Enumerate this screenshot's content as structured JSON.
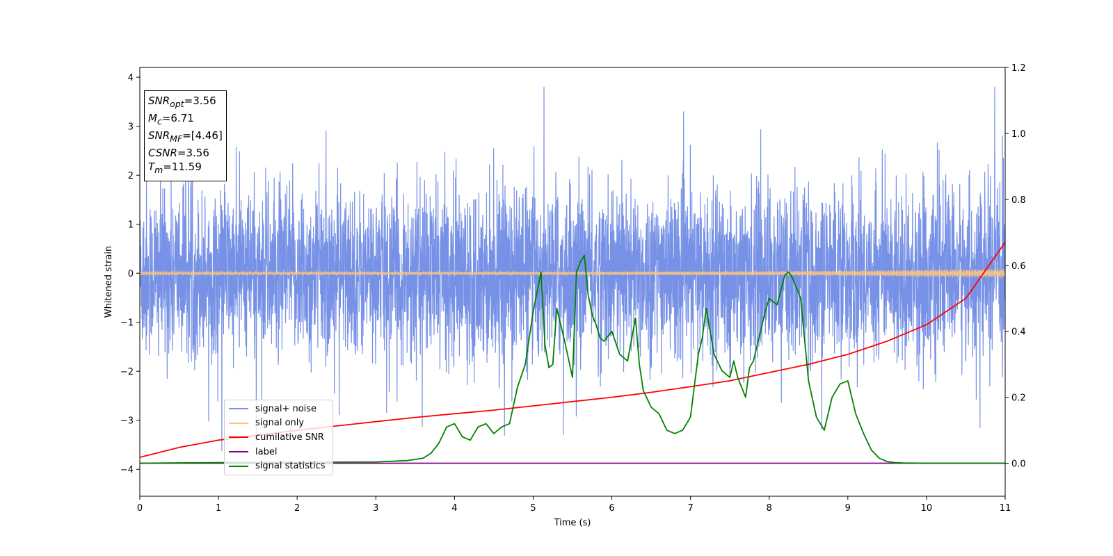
{
  "chart_data": {
    "type": "line",
    "xlabel": "Time (s)",
    "ylabel": "Whitened strain",
    "xlim": [
      0,
      11
    ],
    "ylim_left": [
      -4.55,
      4.2
    ],
    "ylim_right": [
      -0.1,
      1.2
    ],
    "x_ticks": [
      "0",
      "1",
      "2",
      "3",
      "4",
      "5",
      "6",
      "7",
      "8",
      "9",
      "10",
      "11"
    ],
    "y_ticks_left": [
      "−4",
      "−3",
      "−2",
      "−1",
      "0",
      "1",
      "2",
      "3",
      "4"
    ],
    "y_ticks_right": [
      "0.0",
      "0.2",
      "0.4",
      "0.6",
      "0.8",
      "1.0",
      "1.2"
    ],
    "grid": false,
    "legend_position": "lower-left",
    "series": [
      {
        "name": "signal+ noise",
        "axis": "left",
        "color": "#7791e6",
        "envelope": {
          "x": [
            0,
            11
          ],
          "typical_range": [
            -1.5,
            1.5
          ],
          "extreme_range": [
            -4.2,
            3.8
          ]
        }
      },
      {
        "name": "signal only",
        "axis": "left",
        "color": "#ffc77a",
        "envelope": {
          "x": [
            0,
            2,
            4,
            6,
            8,
            9,
            10,
            10.5,
            11
          ],
          "amplitude": [
            0.02,
            0.022,
            0.025,
            0.03,
            0.04,
            0.05,
            0.07,
            0.08,
            0.09
          ]
        }
      },
      {
        "name": "cumilative SNR",
        "axis": "right",
        "color": "#ff0000",
        "x": [
          0,
          0.5,
          1,
          1.5,
          2,
          2.5,
          3,
          3.5,
          4,
          4.5,
          5,
          5.5,
          6,
          6.5,
          7,
          7.5,
          8,
          8.5,
          9,
          9.5,
          10,
          10.5,
          11
        ],
        "y": [
          0.018,
          0.048,
          0.07,
          0.085,
          0.1,
          0.113,
          0.126,
          0.139,
          0.15,
          0.161,
          0.174,
          0.187,
          0.2,
          0.215,
          0.232,
          0.25,
          0.275,
          0.3,
          0.33,
          0.37,
          0.42,
          0.5,
          0.67
        ]
      },
      {
        "name": "label",
        "axis": "right",
        "color": "#800080",
        "x": [
          0,
          11
        ],
        "y": [
          0,
          0
        ]
      },
      {
        "name": "signal statistics",
        "axis": "right",
        "color": "#008000",
        "x": [
          0,
          1,
          2,
          3,
          3.2,
          3.4,
          3.6,
          3.7,
          3.8,
          3.9,
          4.0,
          4.1,
          4.2,
          4.3,
          4.4,
          4.5,
          4.6,
          4.7,
          4.8,
          4.9,
          5.0,
          5.1,
          5.15,
          5.2,
          5.25,
          5.3,
          5.4,
          5.5,
          5.55,
          5.6,
          5.65,
          5.7,
          5.75,
          5.8,
          5.85,
          5.9,
          6.0,
          6.1,
          6.2,
          6.3,
          6.35,
          6.4,
          6.5,
          6.6,
          6.7,
          6.8,
          6.9,
          7.0,
          7.1,
          7.15,
          7.2,
          7.25,
          7.3,
          7.4,
          7.5,
          7.55,
          7.6,
          7.7,
          7.75,
          7.8,
          7.9,
          7.95,
          8.0,
          8.1,
          8.2,
          8.25,
          8.3,
          8.4,
          8.5,
          8.6,
          8.7,
          8.8,
          8.9,
          9.0,
          9.1,
          9.2,
          9.3,
          9.4,
          9.5,
          9.6,
          9.7,
          10,
          11
        ],
        "y": [
          0,
          0.002,
          0.003,
          0.004,
          0.006,
          0.008,
          0.015,
          0.03,
          0.06,
          0.11,
          0.12,
          0.08,
          0.07,
          0.11,
          0.12,
          0.09,
          0.11,
          0.12,
          0.23,
          0.3,
          0.46,
          0.58,
          0.36,
          0.29,
          0.3,
          0.47,
          0.37,
          0.26,
          0.58,
          0.61,
          0.63,
          0.51,
          0.45,
          0.42,
          0.38,
          0.37,
          0.4,
          0.33,
          0.31,
          0.44,
          0.3,
          0.22,
          0.17,
          0.15,
          0.1,
          0.09,
          0.1,
          0.14,
          0.33,
          0.38,
          0.47,
          0.4,
          0.33,
          0.28,
          0.26,
          0.31,
          0.26,
          0.2,
          0.29,
          0.31,
          0.41,
          0.46,
          0.5,
          0.48,
          0.57,
          0.58,
          0.56,
          0.5,
          0.25,
          0.14,
          0.1,
          0.2,
          0.24,
          0.25,
          0.15,
          0.09,
          0.04,
          0.015,
          0.005,
          0.002,
          0.001,
          0,
          0
        ]
      }
    ]
  },
  "info_box": {
    "snr_opt": {
      "sym": "SNR",
      "sub": "opt",
      "value": "=3.56"
    },
    "mc": {
      "sym": "M",
      "sub": "c",
      "value": "=6.71"
    },
    "snr_mf": {
      "sym": "SNR",
      "sub": "MF",
      "value": "=[4.46]"
    },
    "csnr": {
      "sym": "CSNR",
      "value": "=3.56"
    },
    "tm": {
      "sym": "T",
      "sub": "m",
      "value": "=11.59"
    }
  }
}
